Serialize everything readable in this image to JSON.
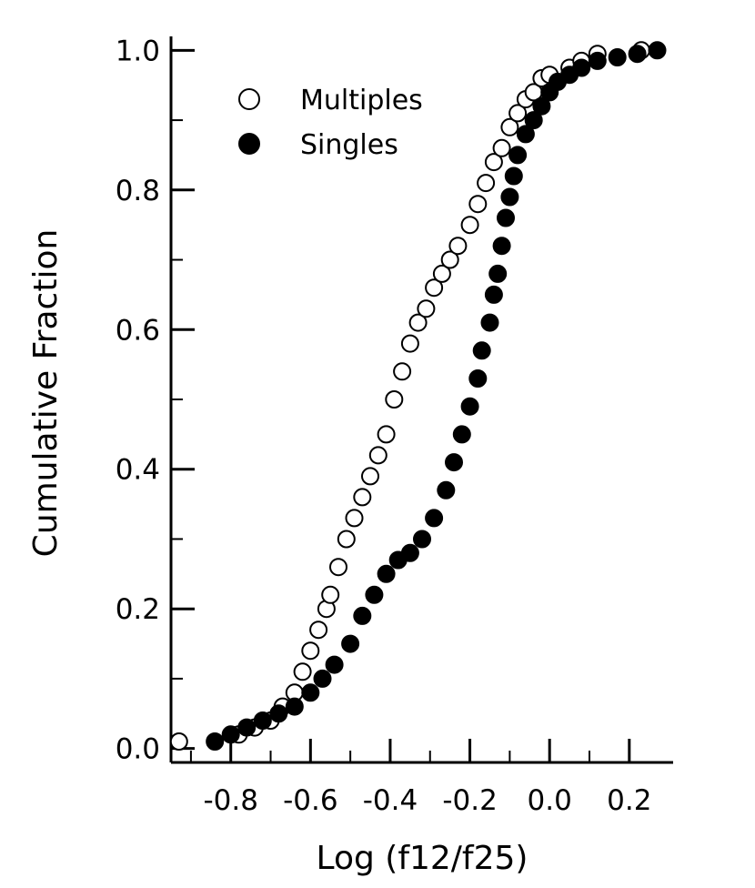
{
  "chart_data": {
    "type": "scatter",
    "title": "",
    "xlabel": "Log (f12/f25)",
    "ylabel": "Cumulative Fraction",
    "xlim": [
      -0.95,
      0.31
    ],
    "ylim": [
      -0.02,
      1.02
    ],
    "x_ticks": [
      -0.8,
      -0.6,
      -0.4,
      -0.2,
      0.0,
      0.2
    ],
    "x_tick_labels": [
      "-0.8",
      "-0.6",
      "-0.4",
      "-0.2",
      "0.0",
      "0.2"
    ],
    "y_ticks": [
      0.0,
      0.2,
      0.4,
      0.6,
      0.8,
      1.0
    ],
    "y_tick_labels": [
      "0.0",
      "0.2",
      "0.4",
      "0.6",
      "0.8",
      "1.0"
    ],
    "grid": false,
    "legend": {
      "position": "top-left"
    },
    "series": [
      {
        "name": "Multiples",
        "marker": "open-circle",
        "color": "#000000",
        "x": [
          -0.93,
          -0.78,
          -0.74,
          -0.7,
          -0.67,
          -0.64,
          -0.62,
          -0.6,
          -0.58,
          -0.56,
          -0.55,
          -0.53,
          -0.51,
          -0.49,
          -0.47,
          -0.45,
          -0.43,
          -0.41,
          -0.39,
          -0.37,
          -0.35,
          -0.33,
          -0.31,
          -0.29,
          -0.27,
          -0.25,
          -0.23,
          -0.2,
          -0.18,
          -0.16,
          -0.14,
          -0.12,
          -0.1,
          -0.08,
          -0.06,
          -0.04,
          -0.02,
          0.0,
          0.05,
          0.08,
          0.12,
          0.23
        ],
        "y": [
          0.01,
          0.02,
          0.03,
          0.04,
          0.06,
          0.08,
          0.11,
          0.14,
          0.17,
          0.2,
          0.22,
          0.26,
          0.3,
          0.33,
          0.36,
          0.39,
          0.42,
          0.45,
          0.5,
          0.54,
          0.58,
          0.61,
          0.63,
          0.66,
          0.68,
          0.7,
          0.72,
          0.75,
          0.78,
          0.81,
          0.84,
          0.86,
          0.89,
          0.91,
          0.93,
          0.94,
          0.96,
          0.965,
          0.975,
          0.985,
          0.995,
          1.0
        ]
      },
      {
        "name": "Singles",
        "marker": "filled-circle",
        "color": "#000000",
        "x": [
          -0.84,
          -0.8,
          -0.76,
          -0.72,
          -0.68,
          -0.64,
          -0.6,
          -0.57,
          -0.54,
          -0.5,
          -0.47,
          -0.44,
          -0.41,
          -0.38,
          -0.35,
          -0.32,
          -0.29,
          -0.26,
          -0.24,
          -0.22,
          -0.2,
          -0.18,
          -0.17,
          -0.15,
          -0.14,
          -0.13,
          -0.12,
          -0.11,
          -0.1,
          -0.09,
          -0.08,
          -0.06,
          -0.04,
          -0.02,
          0.0,
          0.02,
          0.05,
          0.08,
          0.12,
          0.17,
          0.22,
          0.27
        ],
        "y": [
          0.01,
          0.02,
          0.03,
          0.04,
          0.05,
          0.06,
          0.08,
          0.1,
          0.12,
          0.15,
          0.19,
          0.22,
          0.25,
          0.27,
          0.28,
          0.3,
          0.33,
          0.37,
          0.41,
          0.45,
          0.49,
          0.53,
          0.57,
          0.61,
          0.65,
          0.68,
          0.72,
          0.76,
          0.79,
          0.82,
          0.85,
          0.88,
          0.9,
          0.92,
          0.94,
          0.955,
          0.965,
          0.975,
          0.985,
          0.99,
          0.995,
          1.0
        ]
      }
    ]
  }
}
